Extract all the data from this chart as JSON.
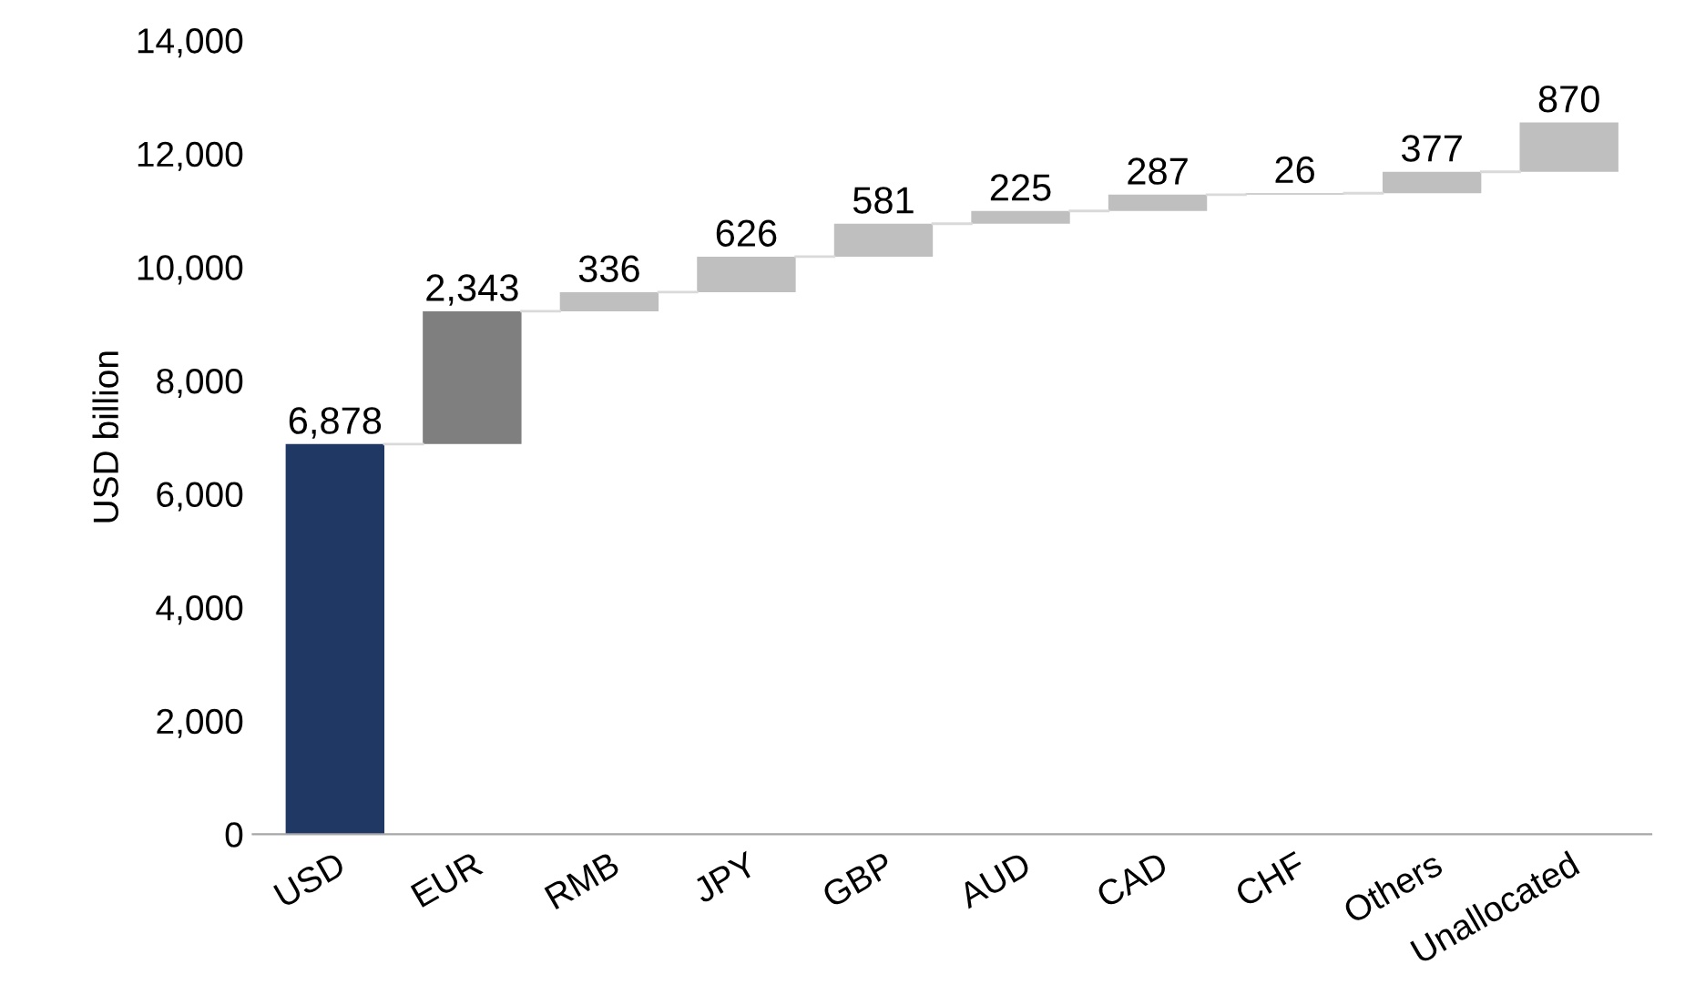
{
  "chart_data": {
    "type": "bar",
    "ylabel": "USD billion",
    "categories": [
      "USD",
      "EUR",
      "RMB",
      "JPY",
      "GBP",
      "AUD",
      "CAD",
      "CHF",
      "Others",
      "Unallocated"
    ],
    "values": [
      6878,
      2343,
      336,
      626,
      581,
      225,
      287,
      26,
      377,
      870
    ],
    "base": [
      0,
      6878,
      9221,
      9557,
      10183,
      10764,
      10989,
      11276,
      11302,
      11679
    ],
    "colors": [
      "#203864",
      "#7f7f7f",
      "#bfbfbf",
      "#bfbfbf",
      "#bfbfbf",
      "#bfbfbf",
      "#bfbfbf",
      "#bfbfbf",
      "#bfbfbf",
      "#bfbfbf"
    ],
    "value_labels": [
      "6,878",
      "2,343",
      "336",
      "626",
      "581",
      "225",
      "287",
      "26",
      "377",
      "870"
    ],
    "ylim": [
      0,
      14000
    ],
    "yticks": [
      {
        "value": 0,
        "label": "0"
      },
      {
        "value": 2000,
        "label": "2,000"
      },
      {
        "value": 4000,
        "label": "4,000"
      },
      {
        "value": 6000,
        "label": "6,000"
      },
      {
        "value": 8000,
        "label": "8,000"
      },
      {
        "value": 10000,
        "label": "10,000"
      },
      {
        "value": 12000,
        "label": "12,000"
      },
      {
        "value": 14000,
        "label": "14,000"
      }
    ],
    "grid": false,
    "legend": false
  }
}
